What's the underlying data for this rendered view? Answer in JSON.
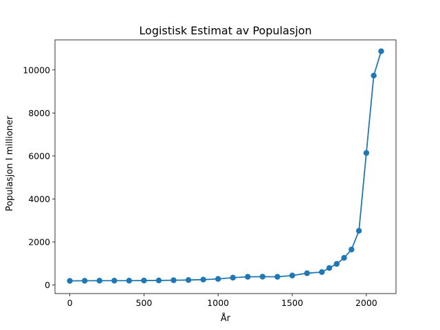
{
  "chart_data": {
    "type": "line",
    "title": "Logistisk Estimat av Populasjon",
    "xlabel": "År",
    "ylabel": "Populasjon I millioner",
    "xlim": [
      -100,
      2200
    ],
    "ylim": [
      -400,
      11400
    ],
    "xticks": [
      0,
      500,
      1000,
      1500,
      2000
    ],
    "yticks": [
      0,
      2000,
      4000,
      6000,
      8000,
      10000
    ],
    "grid": false,
    "markers": true,
    "series": [
      {
        "color": "#1f77b4",
        "points": [
          {
            "x": 0,
            "y": 190
          },
          {
            "x": 100,
            "y": 195
          },
          {
            "x": 200,
            "y": 200
          },
          {
            "x": 300,
            "y": 200
          },
          {
            "x": 400,
            "y": 200
          },
          {
            "x": 500,
            "y": 205
          },
          {
            "x": 600,
            "y": 210
          },
          {
            "x": 700,
            "y": 220
          },
          {
            "x": 800,
            "y": 230
          },
          {
            "x": 900,
            "y": 250
          },
          {
            "x": 1000,
            "y": 280
          },
          {
            "x": 1100,
            "y": 340
          },
          {
            "x": 1200,
            "y": 380
          },
          {
            "x": 1300,
            "y": 385
          },
          {
            "x": 1400,
            "y": 380
          },
          {
            "x": 1500,
            "y": 440
          },
          {
            "x": 1600,
            "y": 545
          },
          {
            "x": 1700,
            "y": 600
          },
          {
            "x": 1750,
            "y": 790
          },
          {
            "x": 1800,
            "y": 980
          },
          {
            "x": 1850,
            "y": 1260
          },
          {
            "x": 1900,
            "y": 1650
          },
          {
            "x": 1950,
            "y": 2520
          },
          {
            "x": 2000,
            "y": 6140
          },
          {
            "x": 2050,
            "y": 9740
          },
          {
            "x": 2100,
            "y": 10870
          }
        ]
      }
    ]
  }
}
